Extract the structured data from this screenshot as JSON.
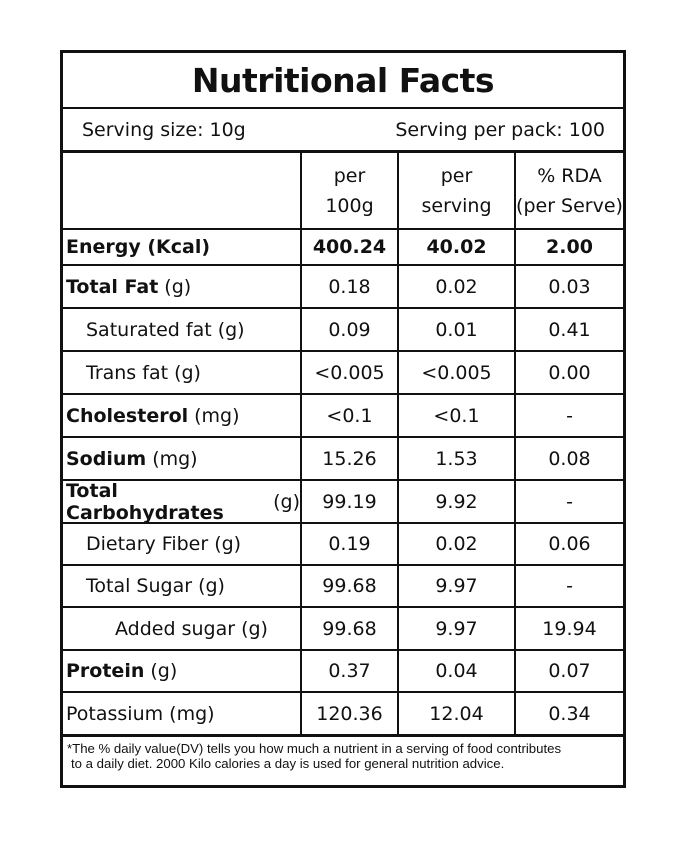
{
  "title": "Nutritional Facts",
  "serving": {
    "size": "Serving size: 10g",
    "per_pack": "Serving per pack: 100"
  },
  "columns": {
    "per100": [
      "per",
      "100g"
    ],
    "perServing": [
      "per",
      "serving"
    ],
    "rda": [
      "% RDA",
      "(per Serve)"
    ]
  },
  "rows": [
    {
      "name": "Energy (Kcal)",
      "unit": "",
      "v1": "400.24",
      "v2": "40.02",
      "v3": "2.00"
    },
    {
      "name": "Total Fat",
      "unit": "(g)",
      "v1": "0.18",
      "v2": "0.02",
      "v3": "0.03"
    },
    {
      "name": "Saturated fat (g)",
      "unit": "",
      "v1": "0.09",
      "v2": "0.01",
      "v3": "0.41"
    },
    {
      "name": "Trans fat (g)",
      "unit": "",
      "v1": "<0.005",
      "v2": "<0.005",
      "v3": "0.00"
    },
    {
      "name": "Cholesterol",
      "unit": "(mg)",
      "v1": "<0.1",
      "v2": "<0.1",
      "v3": "-"
    },
    {
      "name": "Sodium",
      "unit": "(mg)",
      "v1": "15.26",
      "v2": "1.53",
      "v3": "0.08"
    },
    {
      "name": "Total Carbohydrates",
      "unit": "(g)",
      "v1": "99.19",
      "v2": "9.92",
      "v3": "-"
    },
    {
      "name": "Dietary Fiber (g)",
      "unit": "",
      "v1": "0.19",
      "v2": "0.02",
      "v3": "0.06"
    },
    {
      "name": "Total Sugar (g)",
      "unit": "",
      "v1": "99.68",
      "v2": "9.97",
      "v3": "-"
    },
    {
      "name": "Added sugar (g)",
      "unit": "",
      "v1": "99.68",
      "v2": "9.97",
      "v3": "19.94"
    },
    {
      "name": "Protein",
      "unit": "(g)",
      "v1": "0.37",
      "v2": "0.04",
      "v3": "0.07"
    },
    {
      "name": "Potassium (mg)",
      "unit": "",
      "v1": "120.36",
      "v2": "12.04",
      "v3": "0.34"
    }
  ],
  "footnote": {
    "line1": "*The % daily value(DV) tells you how much a nutrient in a serving of food contributes",
    "line2": "to a daily diet. 2000 Kilo calories a day is used for general nutrition advice."
  }
}
